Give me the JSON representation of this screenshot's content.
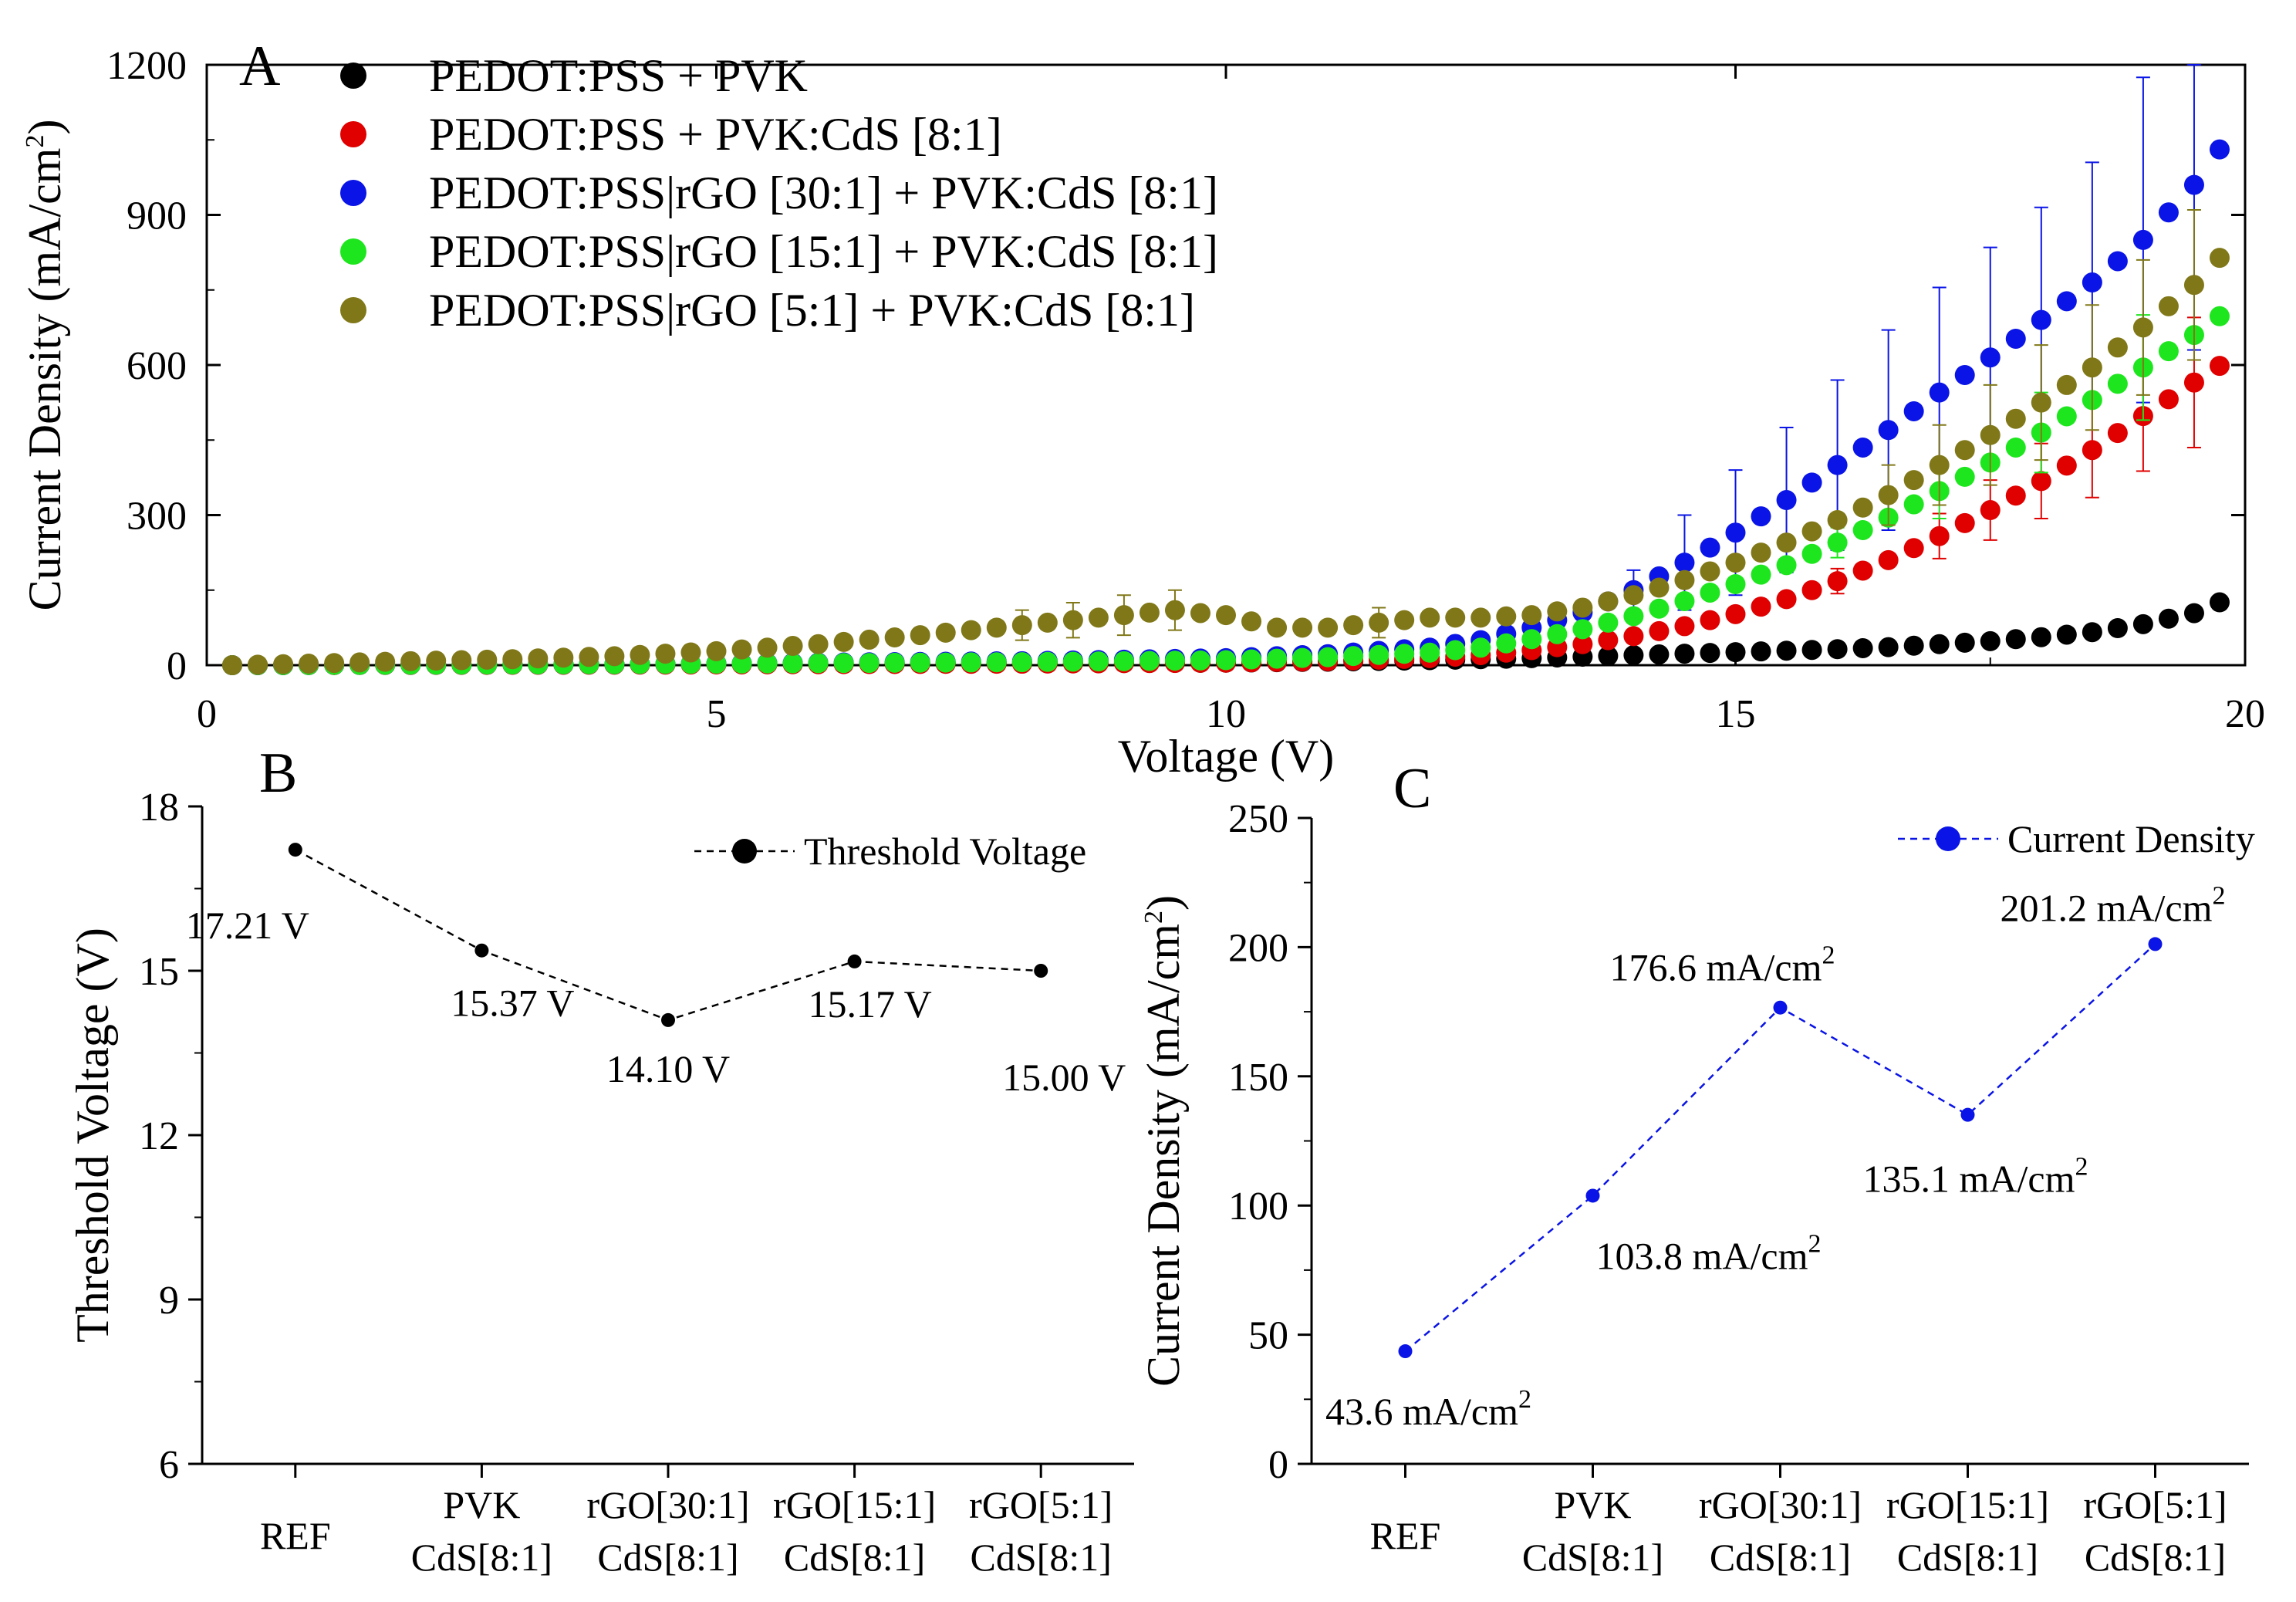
{
  "chart_data": [
    {
      "panel": "A",
      "type": "scatter",
      "xlabel": "Voltage (V)",
      "ylabel": "Current Density (mA/cm",
      "ylabel_sup": "2",
      "ylabel_end": ")",
      "xlim": [
        0,
        20
      ],
      "ylim": [
        0,
        1200
      ],
      "xticks": [
        0,
        5,
        10,
        15,
        20
      ],
      "yticks": [
        0,
        300,
        600,
        900,
        1200
      ],
      "series": [
        {
          "name": "PEDOT:PSS + PVK",
          "color": "#000000",
          "points": [
            [
              0.25,
              0
            ],
            [
              2,
              1
            ],
            [
              4,
              2
            ],
            [
              6,
              3
            ],
            [
              8,
              4
            ],
            [
              10,
              5
            ],
            [
              11,
              7
            ],
            [
              12,
              10
            ],
            [
              13,
              14
            ],
            [
              13.5,
              17
            ],
            [
              14,
              20
            ],
            [
              14.5,
              23
            ],
            [
              15,
              26
            ],
            [
              15.5,
              29
            ],
            [
              16,
              32
            ],
            [
              16.5,
              36
            ],
            [
              17,
              42
            ],
            [
              17.5,
              48
            ],
            [
              18,
              56
            ],
            [
              18.5,
              66
            ],
            [
              19,
              82
            ],
            [
              19.5,
              104
            ],
            [
              19.8,
              130
            ]
          ],
          "errors": [
            [
              19.8,
              18
            ],
            [
              19.5,
              12
            ]
          ]
        },
        {
          "name": "PEDOT:PSS + PVK:CdS [8:1]",
          "color": "#e00000",
          "points": [
            [
              0.25,
              0
            ],
            [
              4,
              1
            ],
            [
              8,
              3
            ],
            [
              10,
              5
            ],
            [
              11,
              8
            ],
            [
              12,
              14
            ],
            [
              12.5,
              20
            ],
            [
              13,
              30
            ],
            [
              13.5,
              42
            ],
            [
              14,
              58
            ],
            [
              14.5,
              78
            ],
            [
              15,
              102
            ],
            [
              15.5,
              132
            ],
            [
              16,
              168
            ],
            [
              16.5,
              210
            ],
            [
              17,
              258
            ],
            [
              17.5,
              310
            ],
            [
              18,
              368
            ],
            [
              18.5,
              430
            ],
            [
              19,
              498
            ],
            [
              19.5,
              565
            ],
            [
              19.8,
              605
            ]
          ],
          "errors": [
            [
              15,
              10
            ],
            [
              16,
              25
            ],
            [
              17,
              45
            ],
            [
              17.5,
              60
            ],
            [
              18,
              75
            ],
            [
              18.5,
              95
            ],
            [
              19,
              110
            ],
            [
              19.5,
              130
            ],
            [
              19.8,
              150
            ]
          ]
        },
        {
          "name": "PEDOT:PSS|rGO [30:1] + PVK:CdS [8:1]",
          "color": "#0a14e6",
          "points": [
            [
              0.25,
              0
            ],
            [
              4,
              2
            ],
            [
              8,
              8
            ],
            [
              10,
              14
            ],
            [
              11,
              22
            ],
            [
              12,
              35
            ],
            [
              12.5,
              50
            ],
            [
              13,
              75
            ],
            [
              13.5,
              105
            ],
            [
              14,
              150
            ],
            [
              14.5,
              205
            ],
            [
              15,
              265
            ],
            [
              15.5,
              330
            ],
            [
              16,
              400
            ],
            [
              16.5,
              470
            ],
            [
              17,
              545
            ],
            [
              17.5,
              615
            ],
            [
              18,
              690
            ],
            [
              18.5,
              765
            ],
            [
              19,
              850
            ],
            [
              19.5,
              960
            ],
            [
              19.8,
              1045
            ]
          ],
          "errors": [
            [
              13.5,
              20
            ],
            [
              14,
              40
            ],
            [
              14.5,
              95
            ],
            [
              15,
              125
            ],
            [
              15.5,
              145
            ],
            [
              16,
              170
            ],
            [
              16.5,
              200
            ],
            [
              17,
              210
            ],
            [
              17.5,
              220
            ],
            [
              18,
              225
            ],
            [
              18.5,
              240
            ],
            [
              19,
              325
            ],
            [
              19.5,
              330
            ],
            [
              19.8,
              350
            ]
          ]
        },
        {
          "name": "PEDOT:PSS|rGO [15:1] + PVK:CdS [8:1]",
          "color": "#1ee61e",
          "points": [
            [
              0.25,
              0
            ],
            [
              4,
              2
            ],
            [
              8,
              6
            ],
            [
              10,
              10
            ],
            [
              11,
              16
            ],
            [
              12,
              25
            ],
            [
              12.5,
              35
            ],
            [
              13,
              52
            ],
            [
              13.5,
              72
            ],
            [
              14,
              98
            ],
            [
              14.5,
              128
            ],
            [
              15,
              162
            ],
            [
              15.5,
              200
            ],
            [
              16,
              245
            ],
            [
              16.5,
              295
            ],
            [
              17,
              348
            ],
            [
              17.5,
              405
            ],
            [
              18,
              465
            ],
            [
              18.5,
              530
            ],
            [
              19,
              595
            ],
            [
              19.5,
              660
            ],
            [
              19.8,
              705
            ]
          ],
          "errors": [
            [
              16,
              30
            ],
            [
              17,
              55
            ],
            [
              18,
              80
            ],
            [
              19,
              105
            ],
            [
              19.8,
              165
            ]
          ]
        },
        {
          "name": "PEDOT:PSS|rGO   [5:1] + PVK:CdS [8:1]",
          "color": "#807818",
          "points": [
            [
              0.25,
              0
            ],
            [
              1,
              3
            ],
            [
              2,
              8
            ],
            [
              3,
              12
            ],
            [
              4,
              18
            ],
            [
              5,
              28
            ],
            [
              6,
              42
            ],
            [
              7,
              60
            ],
            [
              8,
              80
            ],
            [
              8.5,
              90
            ],
            [
              9,
              100
            ],
            [
              9.5,
              110
            ],
            [
              9.8,
              103
            ],
            [
              10,
              100
            ],
            [
              10.5,
              75
            ],
            [
              11,
              75
            ],
            [
              11.5,
              85
            ],
            [
              12,
              95
            ],
            [
              12.5,
              95
            ],
            [
              13,
              100
            ],
            [
              13.5,
              115
            ],
            [
              14,
              140
            ],
            [
              14.5,
              170
            ],
            [
              15,
              205
            ],
            [
              15.5,
              245
            ],
            [
              16,
              290
            ],
            [
              16.5,
              340
            ],
            [
              17,
              400
            ],
            [
              17.5,
              460
            ],
            [
              18,
              525
            ],
            [
              18.5,
              595
            ],
            [
              19,
              675
            ],
            [
              19.5,
              760
            ],
            [
              19.8,
              825
            ]
          ],
          "errors": [
            [
              8,
              30
            ],
            [
              8.5,
              35
            ],
            [
              9,
              40
            ],
            [
              9.5,
              40
            ],
            [
              11.5,
              30
            ],
            [
              16.5,
              60
            ],
            [
              17,
              80
            ],
            [
              17.5,
              100
            ],
            [
              18,
              115
            ],
            [
              18.5,
              125
            ],
            [
              19,
              135
            ],
            [
              19.5,
              150
            ],
            [
              19.8,
              165
            ]
          ]
        }
      ]
    },
    {
      "panel": "B",
      "type": "line",
      "ylabel": "Threshold Voltage (V)",
      "legend": "Threshold Voltage",
      "ylim": [
        6,
        18
      ],
      "yticks": [
        6,
        9,
        12,
        15,
        18
      ],
      "categories": [
        [
          "REF"
        ],
        [
          "PVK",
          "CdS[8:1]"
        ],
        [
          "rGO[30:1]",
          "CdS[8:1]"
        ],
        [
          "rGO[15:1]",
          "CdS[8:1]"
        ],
        [
          "rGO[5:1]",
          "CdS[8:1]"
        ]
      ],
      "values": [
        17.21,
        15.37,
        14.1,
        15.17,
        15.0
      ],
      "labels": [
        "17.21 V",
        "15.37 V",
        "14.10 V",
        "15.17 V",
        "15.00 V"
      ],
      "color": "#000000"
    },
    {
      "panel": "C",
      "type": "line",
      "ylabel": "Current Density (mA/cm",
      "ylabel_sup": "2",
      "ylabel_end": ")",
      "legend": "Current Density",
      "ylim": [
        0,
        250
      ],
      "yticks": [
        0,
        50,
        100,
        150,
        200,
        250
      ],
      "categories": [
        [
          "REF"
        ],
        [
          "PVK",
          "CdS[8:1]"
        ],
        [
          "rGO[30:1]",
          "CdS[8:1]"
        ],
        [
          "rGO[15:1]",
          "CdS[8:1]"
        ],
        [
          "rGO[5:1]",
          "CdS[8:1]"
        ]
      ],
      "values": [
        43.6,
        103.8,
        176.6,
        135.1,
        201.2
      ],
      "labels": [
        "43.6 mA/cm",
        "103.8 mA/cm",
        "176.6 mA/cm",
        "135.1 mA/cm",
        "201.2 mA/cm"
      ],
      "label_sup": "2",
      "color": "#0a14e6"
    }
  ]
}
